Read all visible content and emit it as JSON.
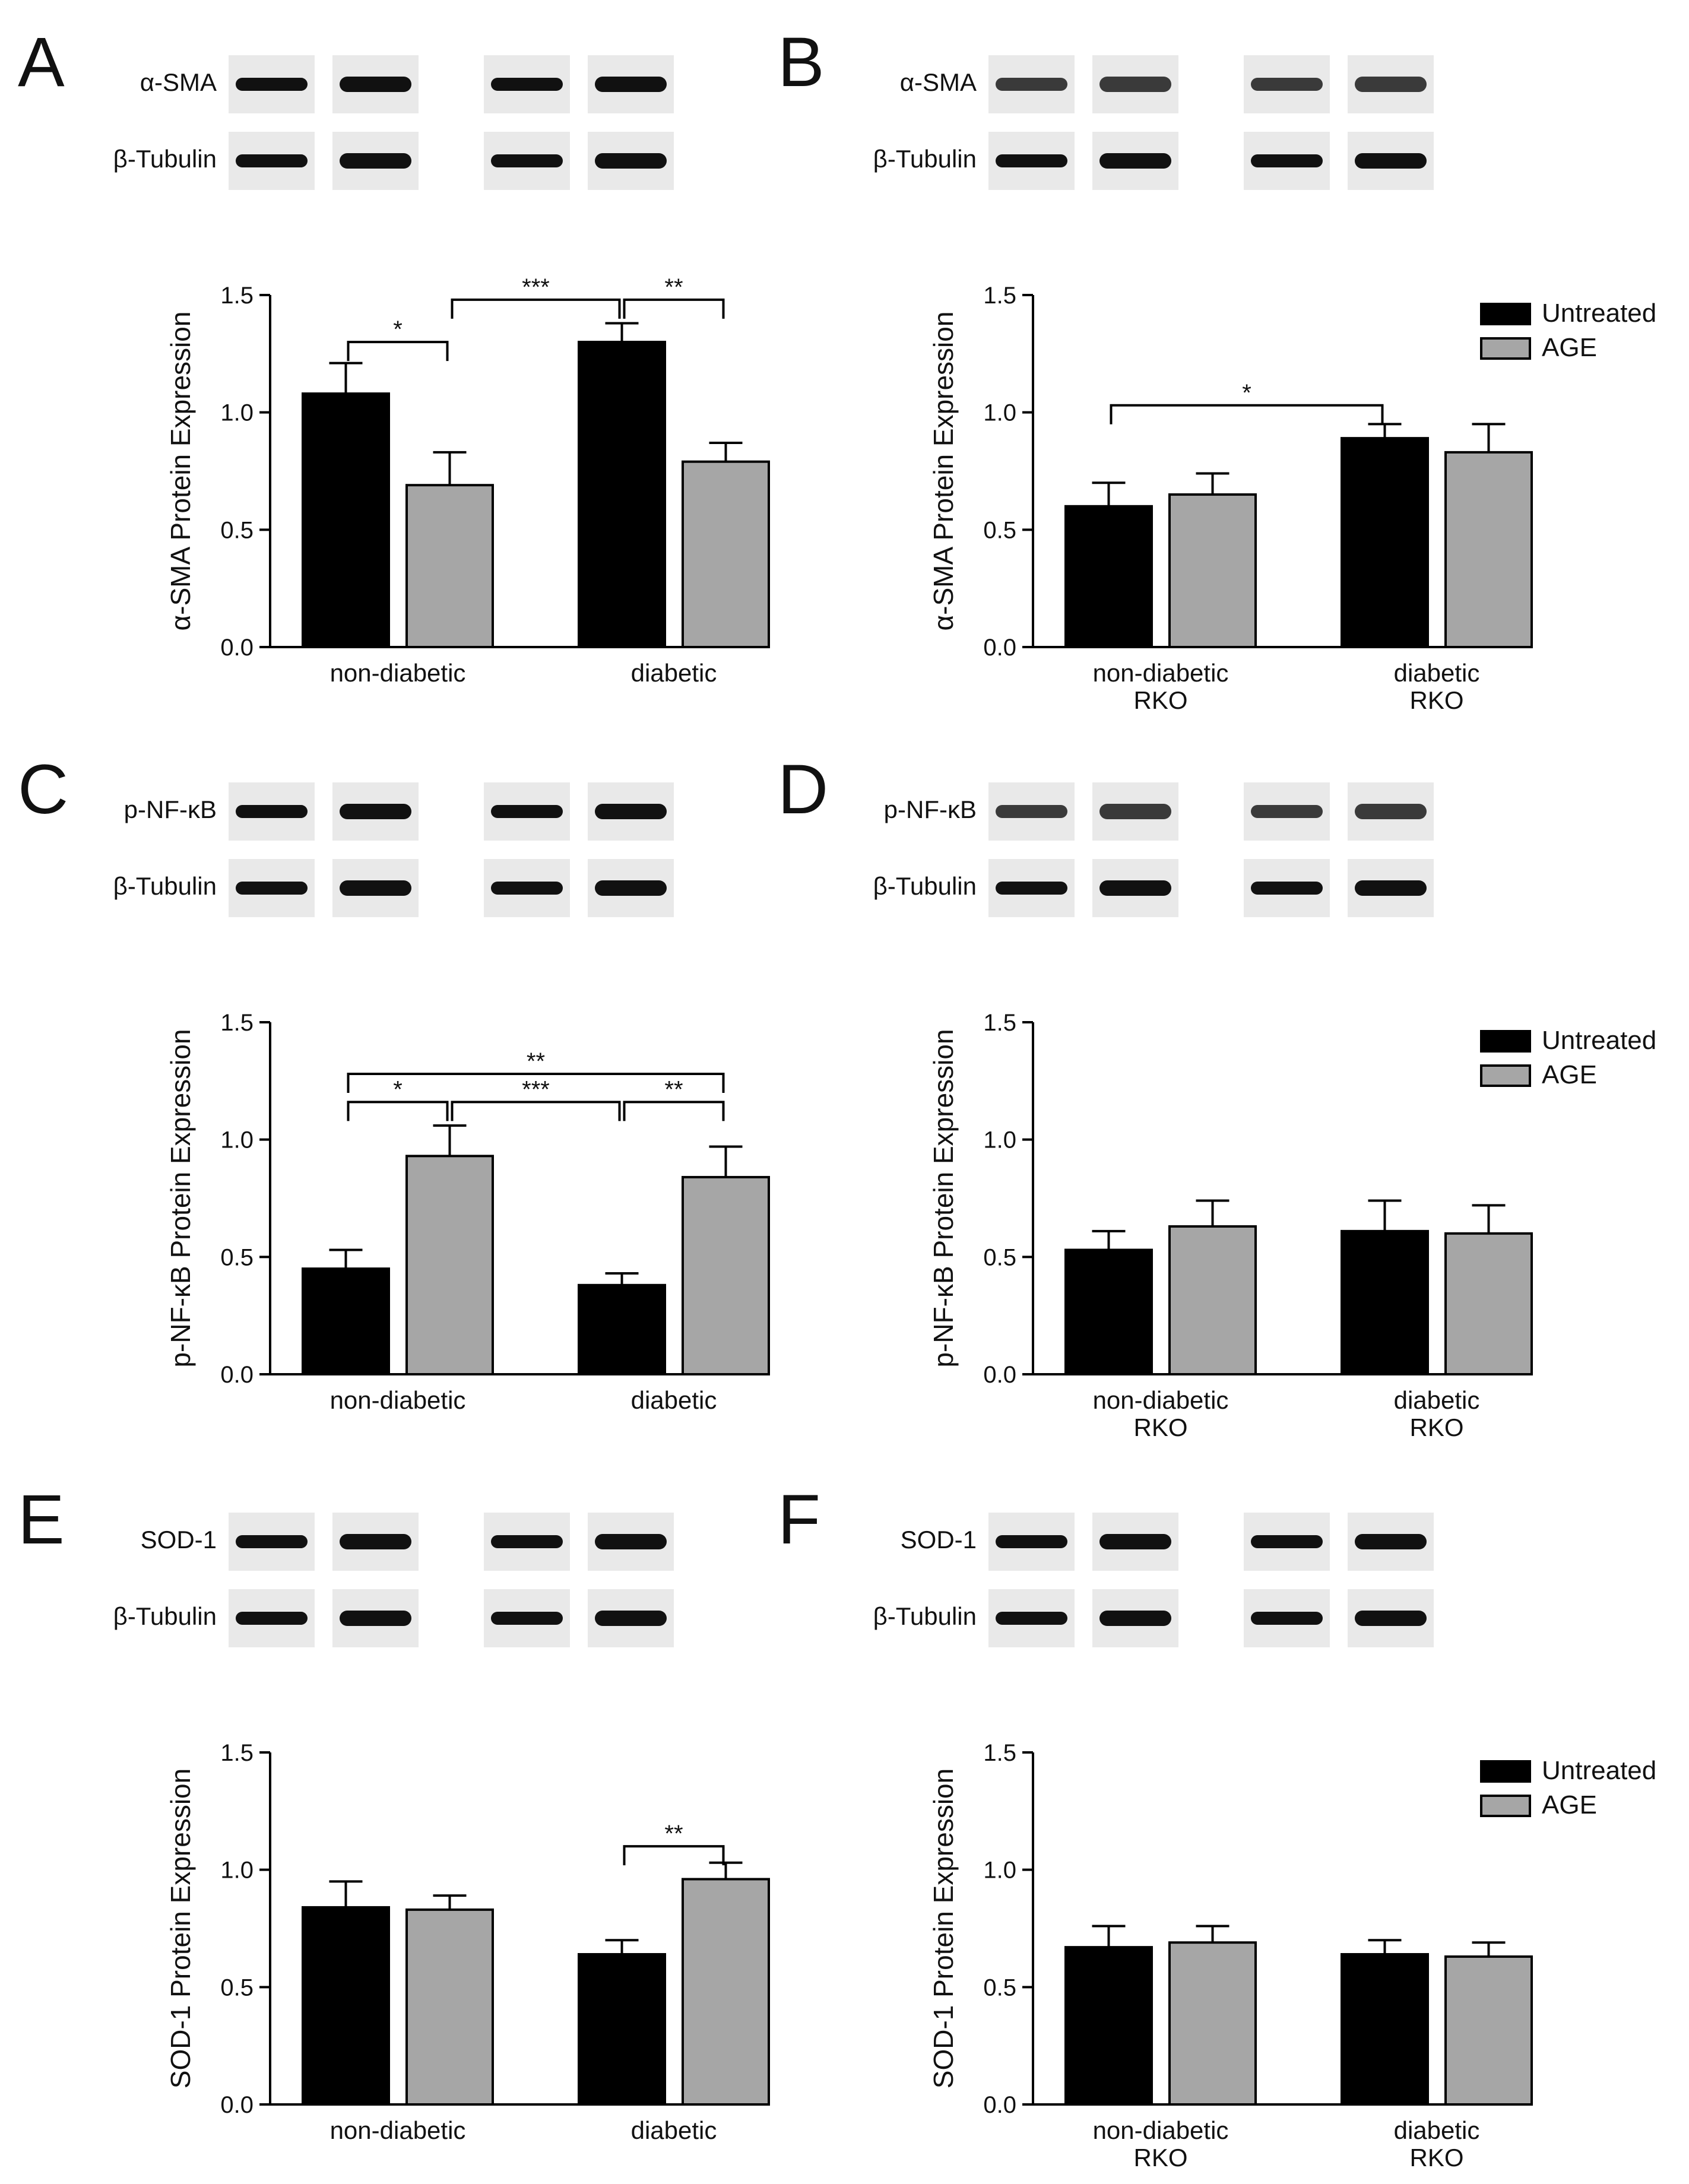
{
  "colors": {
    "untreated": "#000000",
    "age": "#a6a6a6",
    "axis": "#000000",
    "text": "#111111"
  },
  "chart_data": [
    {
      "type": "bar",
      "panel_letter": "A",
      "blot_labels": [
        "α-SMA",
        "β-Tubulin"
      ],
      "categories": [
        "non-diabetic",
        "diabetic"
      ],
      "series": [
        {
          "name": "Untreated",
          "values": [
            1.08,
            1.3
          ],
          "errors": [
            0.13,
            0.08
          ]
        },
        {
          "name": "AGE",
          "values": [
            0.69,
            0.79
          ],
          "errors": [
            0.14,
            0.08
          ]
        }
      ],
      "ylabel": "α-SMA Protein Expression",
      "ylim": [
        0,
        1.5
      ],
      "yticks": [
        "0.0",
        "0.5",
        "1.0",
        "1.5"
      ],
      "legend": [],
      "significance": [
        {
          "from_bar": 0,
          "to_bar": 1,
          "label": "*",
          "y": 1.3
        },
        {
          "from_bar": 1,
          "to_bar": 2,
          "label": "***",
          "y": 1.48
        },
        {
          "from_bar": 2,
          "to_bar": 3,
          "label": "**",
          "y": 1.48
        }
      ]
    },
    {
      "type": "bar",
      "panel_letter": "B",
      "blot_labels": [
        "α-SMA",
        "β-Tubulin"
      ],
      "categories": [
        "non-diabetic\nRKO",
        "diabetic\nRKO"
      ],
      "series": [
        {
          "name": "Untreated",
          "values": [
            0.6,
            0.89
          ],
          "errors": [
            0.1,
            0.06
          ]
        },
        {
          "name": "AGE",
          "values": [
            0.65,
            0.83
          ],
          "errors": [
            0.09,
            0.12
          ]
        }
      ],
      "ylabel": "α-SMA Protein Expression",
      "ylim": [
        0,
        1.5
      ],
      "yticks": [
        "0.0",
        "0.5",
        "1.0",
        "1.5"
      ],
      "legend": [
        "Untreated",
        "AGE"
      ],
      "significance": [
        {
          "from_bar": 0,
          "to_bar": 2,
          "label": "*",
          "y": 1.03
        }
      ]
    },
    {
      "type": "bar",
      "panel_letter": "C",
      "blot_labels": [
        "p-NF-κB",
        "β-Tubulin"
      ],
      "categories": [
        "non-diabetic",
        "diabetic"
      ],
      "series": [
        {
          "name": "Untreated",
          "values": [
            0.45,
            0.38
          ],
          "errors": [
            0.08,
            0.05
          ]
        },
        {
          "name": "AGE",
          "values": [
            0.93,
            0.84
          ],
          "errors": [
            0.13,
            0.13
          ]
        }
      ],
      "ylabel": "p-NF-κB Protein Expression",
      "ylim": [
        0,
        1.5
      ],
      "yticks": [
        "0.0",
        "0.5",
        "1.0",
        "1.5"
      ],
      "legend": [],
      "significance": [
        {
          "from_bar": 0,
          "to_bar": 3,
          "label": "**",
          "y": 1.28
        },
        {
          "from_bar": 0,
          "to_bar": 1,
          "label": "*",
          "y": 1.16
        },
        {
          "from_bar": 1,
          "to_bar": 2,
          "label": "***",
          "y": 1.16
        },
        {
          "from_bar": 2,
          "to_bar": 3,
          "label": "**",
          "y": 1.16
        }
      ]
    },
    {
      "type": "bar",
      "panel_letter": "D",
      "blot_labels": [
        "p-NF-κB",
        "β-Tubulin"
      ],
      "categories": [
        "non-diabetic\nRKO",
        "diabetic\nRKO"
      ],
      "series": [
        {
          "name": "Untreated",
          "values": [
            0.53,
            0.61
          ],
          "errors": [
            0.08,
            0.13
          ]
        },
        {
          "name": "AGE",
          "values": [
            0.63,
            0.6
          ],
          "errors": [
            0.11,
            0.12
          ]
        }
      ],
      "ylabel": "p-NF-κB Protein Expression",
      "ylim": [
        0,
        1.5
      ],
      "yticks": [
        "0.0",
        "0.5",
        "1.0",
        "1.5"
      ],
      "legend": [
        "Untreated",
        "AGE"
      ],
      "significance": []
    },
    {
      "type": "bar",
      "panel_letter": "E",
      "blot_labels": [
        "SOD-1",
        "β-Tubulin"
      ],
      "categories": [
        "non-diabetic",
        "diabetic"
      ],
      "series": [
        {
          "name": "Untreated",
          "values": [
            0.84,
            0.64
          ],
          "errors": [
            0.11,
            0.06
          ]
        },
        {
          "name": "AGE",
          "values": [
            0.83,
            0.96
          ],
          "errors": [
            0.06,
            0.07
          ]
        }
      ],
      "ylabel": "SOD-1 Protein Expression",
      "ylim": [
        0,
        1.5
      ],
      "yticks": [
        "0.0",
        "0.5",
        "1.0",
        "1.5"
      ],
      "legend": [],
      "significance": [
        {
          "from_bar": 2,
          "to_bar": 3,
          "label": "**",
          "y": 1.1
        }
      ]
    },
    {
      "type": "bar",
      "panel_letter": "F",
      "blot_labels": [
        "SOD-1",
        "β-Tubulin"
      ],
      "categories": [
        "non-diabetic\nRKO",
        "diabetic\nRKO"
      ],
      "series": [
        {
          "name": "Untreated",
          "values": [
            0.67,
            0.64
          ],
          "errors": [
            0.09,
            0.06
          ]
        },
        {
          "name": "AGE",
          "values": [
            0.69,
            0.63
          ],
          "errors": [
            0.07,
            0.06
          ]
        }
      ],
      "ylabel": "SOD-1 Protein Expression",
      "ylim": [
        0,
        1.5
      ],
      "yticks": [
        "0.0",
        "0.5",
        "1.0",
        "1.5"
      ],
      "legend": [
        "Untreated",
        "AGE"
      ],
      "significance": []
    }
  ]
}
